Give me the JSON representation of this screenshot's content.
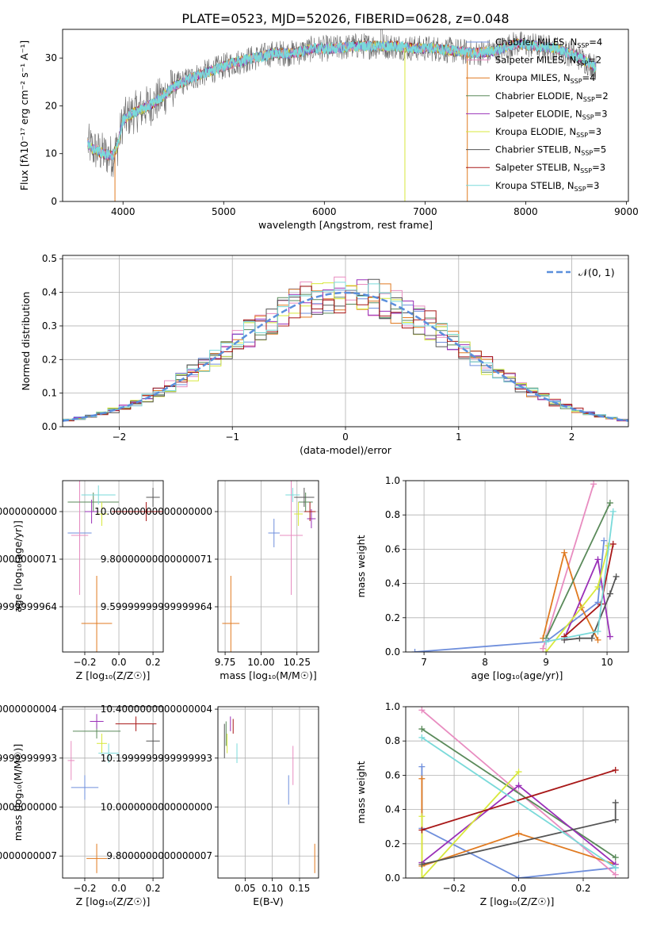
{
  "figure_title": "PLATE=0523, MJD=52026, FIBERID=0628, z=0.048",
  "colors": {
    "chabrier_miles": "#6f8fdc",
    "salpeter_miles": "#e88cc0",
    "kroupa_miles": "#e07a20",
    "chabrier_elodie": "#5a8a5a",
    "salpeter_elodie": "#9a30b8",
    "kroupa_elodie": "#d8e83c",
    "chabrier_stelib": "#555555",
    "salpeter_stelib": "#a81818",
    "kroupa_stelib": "#7adada",
    "gauss": "#5b8fdc"
  },
  "chart_data": [
    {
      "id": "spectrum",
      "type": "line",
      "xlabel": "wavelength [Angstrom, rest frame]",
      "ylabel": "Flux [fλ10⁻¹⁷ erg cm⁻² s⁻¹ A⁻¹]",
      "xlim": [
        3400,
        9020
      ],
      "ylim": [
        0,
        36
      ],
      "xticks": [
        4000,
        5000,
        6000,
        7000,
        8000,
        9000
      ],
      "yticks": [
        0,
        10,
        20,
        30
      ],
      "continuum": {
        "x": [
          3650,
          3700,
          3800,
          3900,
          3950,
          4000,
          4100,
          4200,
          4300,
          4400,
          4500,
          4700,
          4900,
          5100,
          5300,
          5500,
          5700,
          5900,
          6100,
          6300,
          6500,
          6700,
          6900,
          7100,
          7300,
          7500,
          7700,
          7900,
          8100,
          8300,
          8500,
          8700
        ],
        "y": [
          12,
          11,
          10,
          9.5,
          12,
          17,
          18.5,
          19.5,
          20.5,
          22,
          24,
          26,
          27.5,
          29,
          30,
          31,
          31,
          32,
          32,
          32.5,
          32.5,
          32.5,
          32,
          32,
          31.5,
          31,
          31.5,
          33,
          32.5,
          32,
          30.5,
          28
        ]
      },
      "legend_position": "upper right",
      "legend": [
        {
          "key": "chabrier_miles",
          "label": "Chabrier MILES, N",
          "sub": "SSP",
          "suffix": "=4"
        },
        {
          "key": "salpeter_miles",
          "label": "Salpeter MILES, N",
          "sub": "SSP",
          "suffix": "=2"
        },
        {
          "key": "kroupa_miles",
          "label": "Kroupa MILES, N",
          "sub": "SSP",
          "suffix": "=4"
        },
        {
          "key": "chabrier_elodie",
          "label": "Chabrier ELODIE, N",
          "sub": "SSP",
          "suffix": "=2"
        },
        {
          "key": "salpeter_elodie",
          "label": "Salpeter ELODIE, N",
          "sub": "SSP",
          "suffix": "=3"
        },
        {
          "key": "kroupa_elodie",
          "label": "Kroupa ELODIE, N",
          "sub": "SSP",
          "suffix": "=3"
        },
        {
          "key": "chabrier_stelib",
          "label": "Chabrier STELIB, N",
          "sub": "SSP",
          "suffix": "=5"
        },
        {
          "key": "salpeter_stelib",
          "label": "Salpeter STELIB, N",
          "sub": "SSP",
          "suffix": "=3"
        },
        {
          "key": "kroupa_stelib",
          "label": "Kroupa STELIB, N",
          "sub": "SSP",
          "suffix": "=3"
        }
      ]
    },
    {
      "id": "residuals",
      "type": "line",
      "xlabel": "(data-model)/error",
      "ylabel": "Normed distribution",
      "xlim": [
        -2.5,
        2.5
      ],
      "ylim": [
        0,
        0.51
      ],
      "xticks": [
        -2,
        -1,
        0,
        1,
        2
      ],
      "yticks": [
        0.0,
        0.1,
        0.2,
        0.3,
        0.4,
        0.5
      ],
      "legend_label": "𝒩(0, 1)",
      "legend_position": "upper right",
      "bin_width": 0.1,
      "series": [
        "chabrier_miles",
        "salpeter_miles",
        "kroupa_miles",
        "chabrier_elodie",
        "salpeter_elodie",
        "kroupa_elodie",
        "chabrier_stelib",
        "salpeter_stelib",
        "kroupa_stelib"
      ]
    },
    {
      "id": "age_z",
      "type": "scatter",
      "xlabel": "Z [log₁₀(Z/Z☉)]",
      "ylabel": "age  [log₁₀(age/yr)]",
      "xlim": [
        -0.33,
        0.26
      ],
      "ylim": [
        9.41,
        10.13
      ],
      "xticks": [
        -0.2,
        0.0,
        0.2
      ],
      "yticks": [
        9.6,
        9.8,
        10.0
      ],
      "points": [
        {
          "key": "chabrier_miles",
          "x": -0.23,
          "y": 9.91,
          "xerr": 0.07,
          "yerr": 0.08
        },
        {
          "key": "salpeter_miles",
          "x": -0.23,
          "y": 9.9,
          "xerr": 0.05,
          "yerr": 0.25
        },
        {
          "key": "kroupa_miles",
          "x": -0.13,
          "y": 9.53,
          "xerr": 0.09,
          "yerr": 0.2
        },
        {
          "key": "chabrier_elodie",
          "x": -0.15,
          "y": 10.04,
          "xerr": 0.15,
          "yerr": 0.04
        },
        {
          "key": "salpeter_elodie",
          "x": -0.16,
          "y": 10.0,
          "xerr": 0.04,
          "yerr": 0.05
        },
        {
          "key": "kroupa_elodie",
          "x": -0.1,
          "y": 9.99,
          "xerr": 0.03,
          "yerr": 0.05
        },
        {
          "key": "chabrier_stelib",
          "x": 0.2,
          "y": 10.06,
          "xerr": 0.04,
          "yerr": 0.04
        },
        {
          "key": "salpeter_stelib",
          "x": 0.16,
          "y": 10.0,
          "xerr": 0.2,
          "yerr": 0.04
        },
        {
          "key": "kroupa_stelib",
          "x": -0.12,
          "y": 10.07,
          "xerr": 0.1,
          "yerr": 0.04
        }
      ]
    },
    {
      "id": "age_mass",
      "type": "scatter",
      "xlabel": "mass [log₁₀(M/M☉)]",
      "ylabel": "",
      "xlim": [
        9.7,
        10.4
      ],
      "ylim": [
        9.41,
        10.13
      ],
      "xticks": [
        9.75,
        10.0,
        10.25
      ],
      "yticks": [
        9.6,
        9.8,
        10.0
      ],
      "points": [
        {
          "key": "chabrier_miles",
          "x": 10.09,
          "y": 9.91,
          "xerr": 0.04,
          "yerr": 0.06
        },
        {
          "key": "salpeter_miles",
          "x": 10.21,
          "y": 9.9,
          "xerr": 0.08,
          "yerr": 0.25
        },
        {
          "key": "kroupa_miles",
          "x": 9.79,
          "y": 9.53,
          "xerr": 0.06,
          "yerr": 0.2
        },
        {
          "key": "chabrier_elodie",
          "x": 10.31,
          "y": 10.04,
          "xerr": 0.05,
          "yerr": 0.04
        },
        {
          "key": "salpeter_elodie",
          "x": 10.35,
          "y": 9.97,
          "xerr": 0.03,
          "yerr": 0.04
        },
        {
          "key": "kroupa_elodie",
          "x": 10.26,
          "y": 9.99,
          "xerr": 0.03,
          "yerr": 0.05
        },
        {
          "key": "chabrier_stelib",
          "x": 10.3,
          "y": 10.06,
          "xerr": 0.07,
          "yerr": 0.04
        },
        {
          "key": "salpeter_stelib",
          "x": 10.34,
          "y": 10.0,
          "xerr": 0.04,
          "yerr": 0.04
        },
        {
          "key": "kroupa_stelib",
          "x": 10.22,
          "y": 10.07,
          "xerr": 0.05,
          "yerr": 0.03
        }
      ]
    },
    {
      "id": "mw_age",
      "type": "line",
      "xlabel": "age  [log₁₀(age/yr)]",
      "ylabel": "mass weight",
      "xlim": [
        6.7,
        10.35
      ],
      "ylim": [
        0,
        1
      ],
      "xticks": [
        7,
        8,
        9,
        10
      ],
      "yticks": [
        0.0,
        0.2,
        0.4,
        0.6,
        0.8,
        1.0
      ],
      "series": [
        {
          "key": "chabrier_miles",
          "x": [
            6.85,
            9.0,
            9.85,
            9.95
          ],
          "y": [
            0.0,
            0.06,
            0.29,
            0.65
          ]
        },
        {
          "key": "salpeter_miles",
          "x": [
            8.95,
            9.78
          ],
          "y": [
            0.02,
            0.98
          ]
        },
        {
          "key": "kroupa_miles",
          "x": [
            8.95,
            9.3,
            9.58,
            9.85
          ],
          "y": [
            0.08,
            0.58,
            0.26,
            0.07
          ]
        },
        {
          "key": "chabrier_elodie",
          "x": [
            9.0,
            10.05
          ],
          "y": [
            0.08,
            0.87
          ]
        },
        {
          "key": "salpeter_elodie",
          "x": [
            9.3,
            9.85,
            10.05
          ],
          "y": [
            0.08,
            0.54,
            0.09
          ]
        },
        {
          "key": "kroupa_elodie",
          "x": [
            9.0,
            9.85,
            10.02
          ],
          "y": [
            0.0,
            0.38,
            0.62
          ]
        },
        {
          "key": "chabrier_stelib",
          "x": [
            9.3,
            9.55,
            9.75,
            10.05,
            10.15
          ],
          "y": [
            0.07,
            0.08,
            0.08,
            0.34,
            0.44
          ]
        },
        {
          "key": "salpeter_stelib",
          "x": [
            9.3,
            9.9,
            10.1
          ],
          "y": [
            0.09,
            0.28,
            0.63
          ]
        },
        {
          "key": "kroupa_stelib",
          "x": [
            9.0,
            9.85,
            10.1
          ],
          "y": [
            0.06,
            0.12,
            0.82
          ]
        }
      ]
    },
    {
      "id": "mass_z",
      "type": "scatter",
      "xlabel": "Z [log₁₀(Z/Z☉)]",
      "ylabel": "mass [log₁₀(M/M☉)]",
      "xlim": [
        -0.33,
        0.26
      ],
      "ylim": [
        9.71,
        10.41
      ],
      "xticks": [
        -0.2,
        0.0,
        0.2
      ],
      "yticks": [
        9.8,
        10.0,
        10.2,
        10.4
      ],
      "points": [
        {
          "key": "chabrier_miles",
          "x": -0.2,
          "y": 10.08,
          "xerr": 0.08,
          "yerr": 0.05
        },
        {
          "key": "salpeter_miles",
          "x": -0.28,
          "y": 10.19,
          "xerr": 0.02,
          "yerr": 0.08
        },
        {
          "key": "kroupa_miles",
          "x": -0.13,
          "y": 9.79,
          "xerr": 0.06,
          "yerr": 0.06
        },
        {
          "key": "chabrier_elodie",
          "x": -0.13,
          "y": 10.31,
          "xerr": 0.14,
          "yerr": 0.03
        },
        {
          "key": "salpeter_elodie",
          "x": -0.13,
          "y": 10.35,
          "xerr": 0.04,
          "yerr": 0.03
        },
        {
          "key": "kroupa_elodie",
          "x": -0.1,
          "y": 10.26,
          "xerr": 0.03,
          "yerr": 0.04
        },
        {
          "key": "chabrier_stelib",
          "x": 0.2,
          "y": 10.27,
          "xerr": 0.04,
          "yerr": 0.07
        },
        {
          "key": "salpeter_stelib",
          "x": 0.1,
          "y": 10.34,
          "xerr": 0.12,
          "yerr": 0.03
        },
        {
          "key": "kroupa_stelib",
          "x": -0.06,
          "y": 10.22,
          "xerr": 0.06,
          "yerr": 0.04
        }
      ]
    },
    {
      "id": "mass_ebv",
      "type": "scatter",
      "xlabel": "E(B-V)",
      "ylabel": "",
      "xlim": [
        0.0,
        0.185
      ],
      "ylim": [
        9.71,
        10.41
      ],
      "xticks": [
        0.05,
        0.1,
        0.15
      ],
      "yticks": [
        9.8,
        10.0,
        10.2,
        10.4
      ],
      "points": [
        {
          "key": "chabrier_miles",
          "x": 0.13,
          "y": 10.07,
          "xerr": 0.0,
          "yerr": 0.06
        },
        {
          "key": "salpeter_miles",
          "x": 0.138,
          "y": 10.17,
          "xerr": 0.0,
          "yerr": 0.08
        },
        {
          "key": "kroupa_miles",
          "x": 0.178,
          "y": 9.79,
          "xerr": 0.0,
          "yerr": 0.06
        },
        {
          "key": "chabrier_elodie",
          "x": 0.015,
          "y": 10.3,
          "xerr": 0.0,
          "yerr": 0.05
        },
        {
          "key": "salpeter_elodie",
          "x": 0.023,
          "y": 10.34,
          "xerr": 0.0,
          "yerr": 0.03
        },
        {
          "key": "kroupa_elodie",
          "x": 0.017,
          "y": 10.26,
          "xerr": 0.0,
          "yerr": 0.04
        },
        {
          "key": "chabrier_stelib",
          "x": 0.012,
          "y": 10.27,
          "xerr": 0.0,
          "yerr": 0.07
        },
        {
          "key": "salpeter_stelib",
          "x": 0.028,
          "y": 10.33,
          "xerr": 0.0,
          "yerr": 0.03
        },
        {
          "key": "kroupa_stelib",
          "x": 0.035,
          "y": 10.22,
          "xerr": 0.0,
          "yerr": 0.04
        }
      ]
    },
    {
      "id": "mw_z",
      "type": "line",
      "xlabel": "Z [log₁₀(Z/Z☉)]",
      "ylabel": "mass weight",
      "xlim": [
        -0.35,
        0.34
      ],
      "ylim": [
        0,
        1
      ],
      "xticks": [
        -0.2,
        0.0,
        0.2
      ],
      "yticks": [
        0.0,
        0.2,
        0.4,
        0.6,
        0.8,
        1.0
      ],
      "series": [
        {
          "key": "chabrier_miles",
          "x": [
            -0.3,
            -0.3,
            0.0,
            0.3
          ],
          "y": [
            0.65,
            0.29,
            0.0,
            0.06
          ]
        },
        {
          "key": "salpeter_miles",
          "x": [
            -0.3,
            0.3
          ],
          "y": [
            0.98,
            0.02
          ]
        },
        {
          "key": "kroupa_miles",
          "x": [
            -0.3,
            -0.3,
            0.0,
            0.3
          ],
          "y": [
            0.58,
            0.07,
            0.26,
            0.08
          ]
        },
        {
          "key": "chabrier_elodie",
          "x": [
            -0.3,
            0.3
          ],
          "y": [
            0.87,
            0.12
          ]
        },
        {
          "key": "salpeter_elodie",
          "x": [
            -0.3,
            0.0,
            0.3
          ],
          "y": [
            0.09,
            0.54,
            0.08
          ]
        },
        {
          "key": "kroupa_elodie",
          "x": [
            -0.3,
            -0.3,
            0.0
          ],
          "y": [
            0.36,
            0.0,
            0.62
          ]
        },
        {
          "key": "chabrier_stelib",
          "x": [
            -0.3,
            0.3,
            0.3
          ],
          "y": [
            0.08,
            0.34,
            0.44
          ]
        },
        {
          "key": "salpeter_stelib",
          "x": [
            -0.3,
            0.3
          ],
          "y": [
            0.28,
            0.63
          ]
        },
        {
          "key": "kroupa_stelib",
          "x": [
            -0.3,
            0.3
          ],
          "y": [
            0.82,
            0.06
          ]
        }
      ]
    }
  ]
}
